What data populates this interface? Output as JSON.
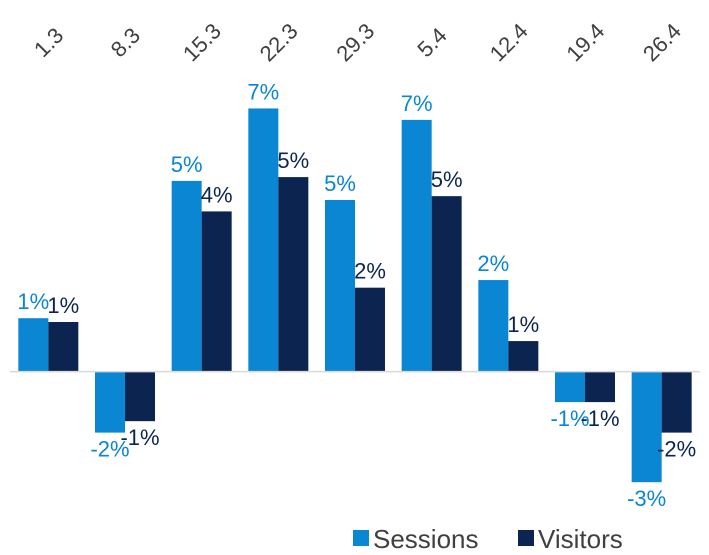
{
  "chart_data": {
    "type": "bar",
    "categories": [
      "1.3",
      "8.3",
      "15.3",
      "22.3",
      "29.3",
      "5.4",
      "12.4",
      "19.4",
      "26.4"
    ],
    "series": [
      {
        "name": "Sessions",
        "color": "#0a86d2",
        "values": [
          1.4,
          -1.6,
          5.0,
          6.9,
          4.5,
          6.6,
          2.4,
          -0.8,
          -2.9
        ],
        "labels": [
          "1%",
          "-2%",
          "5%",
          "7%",
          "5%",
          "7%",
          "2%",
          "-1%",
          "-3%"
        ]
      },
      {
        "name": "Visitors",
        "color": "#0c2550",
        "values": [
          1.3,
          -1.3,
          4.2,
          5.1,
          2.2,
          4.6,
          0.8,
          -0.8,
          -1.6
        ],
        "labels": [
          "1%",
          "-1%",
          "4%",
          "5%",
          "2%",
          "5%",
          "1%",
          "-1%",
          "-2%"
        ]
      }
    ],
    "ylim": [
      -3.0,
      7.2
    ],
    "axis_color": "#d9d9d9",
    "gridlines": false,
    "legend_position": "bottom-right"
  }
}
